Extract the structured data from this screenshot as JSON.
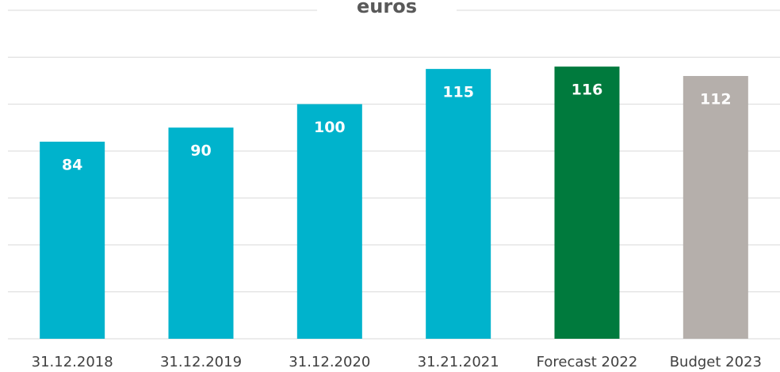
{
  "chart_data": {
    "type": "bar",
    "title": "euros",
    "categories": [
      "31.12.2018",
      "31.12.2019",
      "31.12.2020",
      "31.21.2021",
      "Forecast 2022",
      "Budget 2023"
    ],
    "values": [
      84,
      90,
      100,
      115,
      116,
      112
    ],
    "colors": [
      "#00b3cc",
      "#00b3cc",
      "#00b3cc",
      "#00b3cc",
      "#007a3d",
      "#b5afab"
    ],
    "ylim": [
      0,
      140
    ],
    "yticks": [
      0,
      20,
      40,
      60,
      80,
      100,
      120,
      140
    ],
    "grid": true
  }
}
